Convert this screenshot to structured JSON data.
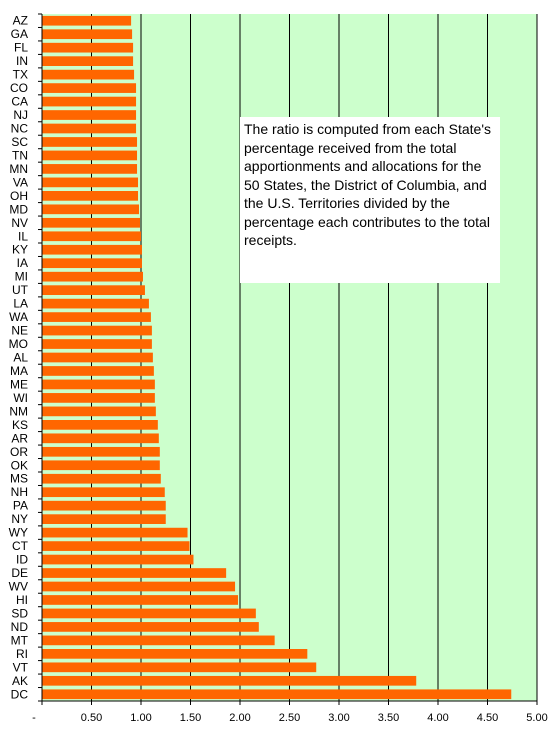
{
  "chart_data": {
    "type": "bar",
    "orientation": "horizontal",
    "title": "",
    "xlabel": "",
    "ylabel": "",
    "xlim": [
      0,
      5
    ],
    "x_ticks": [
      "-",
      "0.50",
      "1.00",
      "1.50",
      "2.00",
      "2.50",
      "3.00",
      "3.50",
      "4.00",
      "4.50",
      "5.00"
    ],
    "grid": true,
    "annotation": "The ratio is computed from each State's percentage received from the total apportionments and allocations for the 50 States, the District of Columbia, and the U.S. Territories divided by the percentage each contributes to the total receipts.",
    "categories": [
      "AZ",
      "GA",
      "FL",
      "IN",
      "TX",
      "CO",
      "CA",
      "NJ",
      "NC",
      "SC",
      "TN",
      "MN",
      "VA",
      "OH",
      "MD",
      "NV",
      "IL",
      "KY",
      "IA",
      "MI",
      "UT",
      "LA",
      "WA",
      "NE",
      "MO",
      "AL",
      "MA",
      "ME",
      "WI",
      "NM",
      "KS",
      "AR",
      "OR",
      "OK",
      "MS",
      "NH",
      "PA",
      "NY",
      "WY",
      "CT",
      "ID",
      "DE",
      "WV",
      "HI",
      "SD",
      "ND",
      "MT",
      "RI",
      "VT",
      "AK",
      "DC"
    ],
    "values": [
      0.9,
      0.91,
      0.92,
      0.92,
      0.93,
      0.95,
      0.95,
      0.95,
      0.95,
      0.96,
      0.96,
      0.96,
      0.97,
      0.97,
      0.98,
      0.99,
      1.0,
      1.01,
      1.01,
      1.02,
      1.04,
      1.08,
      1.1,
      1.11,
      1.11,
      1.12,
      1.13,
      1.14,
      1.14,
      1.15,
      1.17,
      1.18,
      1.19,
      1.19,
      1.2,
      1.24,
      1.25,
      1.25,
      1.47,
      1.49,
      1.53,
      1.86,
      1.95,
      1.98,
      2.16,
      2.19,
      2.35,
      2.68,
      2.77,
      3.78,
      4.74
    ],
    "colors": {
      "plot_bg": "#ccffcc",
      "bar": "#ff6600",
      "gridline": "#000000"
    }
  }
}
